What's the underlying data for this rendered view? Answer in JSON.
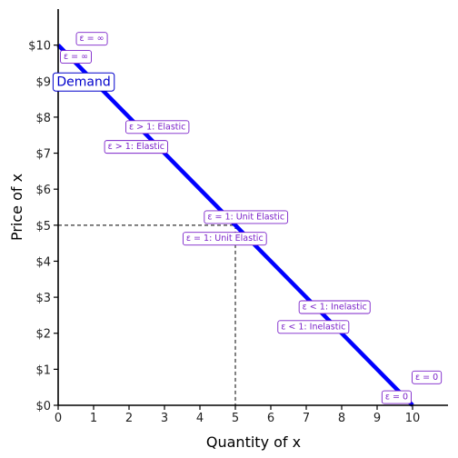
{
  "colors": {
    "demand_line": "#0000ff",
    "label_border": "#7b22c9",
    "label_text": "#7b22c9",
    "demand_label": "#0000cc",
    "axis": "#000000",
    "reference_line": "#000000"
  },
  "chart_data": {
    "type": "line",
    "title": "",
    "xlabel": "Quantity of x",
    "ylabel": "Price of x",
    "xlim": [
      0,
      11
    ],
    "ylim": [
      0,
      11
    ],
    "x_ticks": [
      0,
      1,
      2,
      3,
      4,
      5,
      6,
      7,
      8,
      9,
      10
    ],
    "x_tick_labels": [
      "0",
      "1",
      "2",
      "3",
      "4",
      "5",
      "6",
      "7",
      "8",
      "9",
      "10"
    ],
    "y_ticks": [
      0,
      1,
      2,
      3,
      4,
      5,
      6,
      7,
      8,
      9,
      10
    ],
    "y_tick_labels": [
      "$0",
      "$1",
      "$2",
      "$3",
      "$4",
      "$5",
      "$6",
      "$7",
      "$8",
      "$9",
      "$10"
    ],
    "grid": false,
    "series": [
      {
        "name": "Demand",
        "x": [
          0,
          10
        ],
        "y": [
          10,
          0
        ]
      }
    ],
    "demand_label": {
      "text": "Demand",
      "x": 0.6,
      "y": 9.0
    },
    "reference_point": {
      "x": 5,
      "y": 5,
      "style": "dashed"
    },
    "annotations": [
      {
        "text": "ε = ∞",
        "x": 0.95,
        "y": 10.2
      },
      {
        "text": "ε = ∞",
        "x": 0.5,
        "y": 9.7
      },
      {
        "text": "ε > 1: Elastic",
        "x": 2.8,
        "y": 7.75
      },
      {
        "text": "ε > 1: Elastic",
        "x": 2.2,
        "y": 7.2
      },
      {
        "text": "ε = 1: Unit Elastic",
        "x": 5.3,
        "y": 5.25
      },
      {
        "text": "ε = 1: Unit Elastic",
        "x": 4.7,
        "y": 4.65
      },
      {
        "text": "ε < 1: Inelastic",
        "x": 7.8,
        "y": 2.75
      },
      {
        "text": "ε < 1: Inelastic",
        "x": 7.2,
        "y": 2.2
      },
      {
        "text": "ε = 0",
        "x": 10.4,
        "y": 0.8
      },
      {
        "text": "ε = 0",
        "x": 9.55,
        "y": 0.25
      }
    ]
  }
}
